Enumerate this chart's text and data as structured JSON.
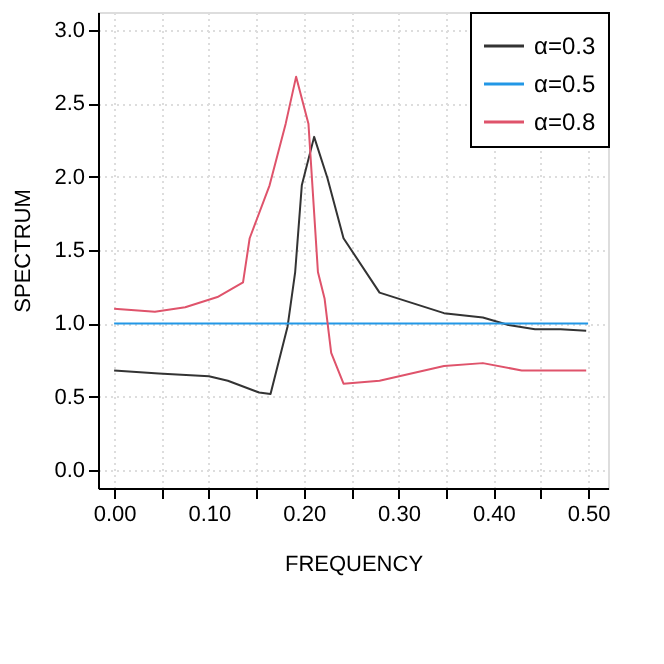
{
  "chart_data": {
    "type": "line",
    "xlabel": "FREQUENCY",
    "ylabel": "SPECTRUM",
    "xlim": [
      -0.017,
      0.521
    ],
    "ylim": [
      -0.12,
      3.12
    ],
    "xticks": [
      {
        "value": 0,
        "label": "0.00"
      },
      {
        "value": 0.05,
        "label": null
      },
      {
        "value": 0.1,
        "label": "0.10"
      },
      {
        "value": 0.15,
        "label": null
      },
      {
        "value": 0.2,
        "label": "0.20"
      },
      {
        "value": 0.25,
        "label": null
      },
      {
        "value": 0.3,
        "label": "0.30"
      },
      {
        "value": 0.35,
        "label": null
      },
      {
        "value": 0.4,
        "label": "0.40"
      },
      {
        "value": 0.45,
        "label": null
      },
      {
        "value": 0.5,
        "label": "0.50"
      }
    ],
    "yticks": [
      {
        "value": 0,
        "label": "0.0"
      },
      0.5,
      {
        "value": 1,
        "label": "1.0"
      },
      1.5,
      {
        "value": 2,
        "label": "2.0"
      },
      2.5,
      {
        "value": 3,
        "label": "3.0"
      }
    ],
    "grid": true,
    "legend": "top right",
    "marker": "none",
    "line_style": "solid",
    "series": [
      {
        "name": "α=0.3",
        "color": "#333333",
        "x": [
          0,
          0.047,
          0.1,
          0.12,
          0.153,
          0.165,
          0.183,
          0.191,
          0.198,
          0.211,
          0.225,
          0.242,
          0.28,
          0.314,
          0.348,
          0.389,
          0.416,
          0.444,
          0.471,
          0.498
        ],
        "values": [
          0.68,
          0.66,
          0.64,
          0.61,
          0.53,
          0.52,
          0.98,
          1.35,
          1.94,
          2.27,
          1.99,
          1.58,
          1.21,
          1.14,
          1.07,
          1.04,
          0.99,
          0.96,
          0.96,
          0.95
        ]
      },
      {
        "name": "α=0.5",
        "color": "#2297e6",
        "x": [
          0,
          0.5
        ],
        "values": [
          1.0,
          1.0
        ]
      },
      {
        "name": "α=0.8",
        "color": "#df536b",
        "x": [
          0,
          0.043,
          0.075,
          0.109,
          0.136,
          0.143,
          0.164,
          0.181,
          0.192,
          0.205,
          0.215,
          0.222,
          0.229,
          0.242,
          0.28,
          0.348,
          0.389,
          0.43,
          0.498
        ],
        "values": [
          1.1,
          1.08,
          1.11,
          1.18,
          1.28,
          1.58,
          1.94,
          2.36,
          2.68,
          2.36,
          1.35,
          1.17,
          0.8,
          0.59,
          0.61,
          0.71,
          0.73,
          0.68,
          0.68
        ]
      }
    ]
  }
}
